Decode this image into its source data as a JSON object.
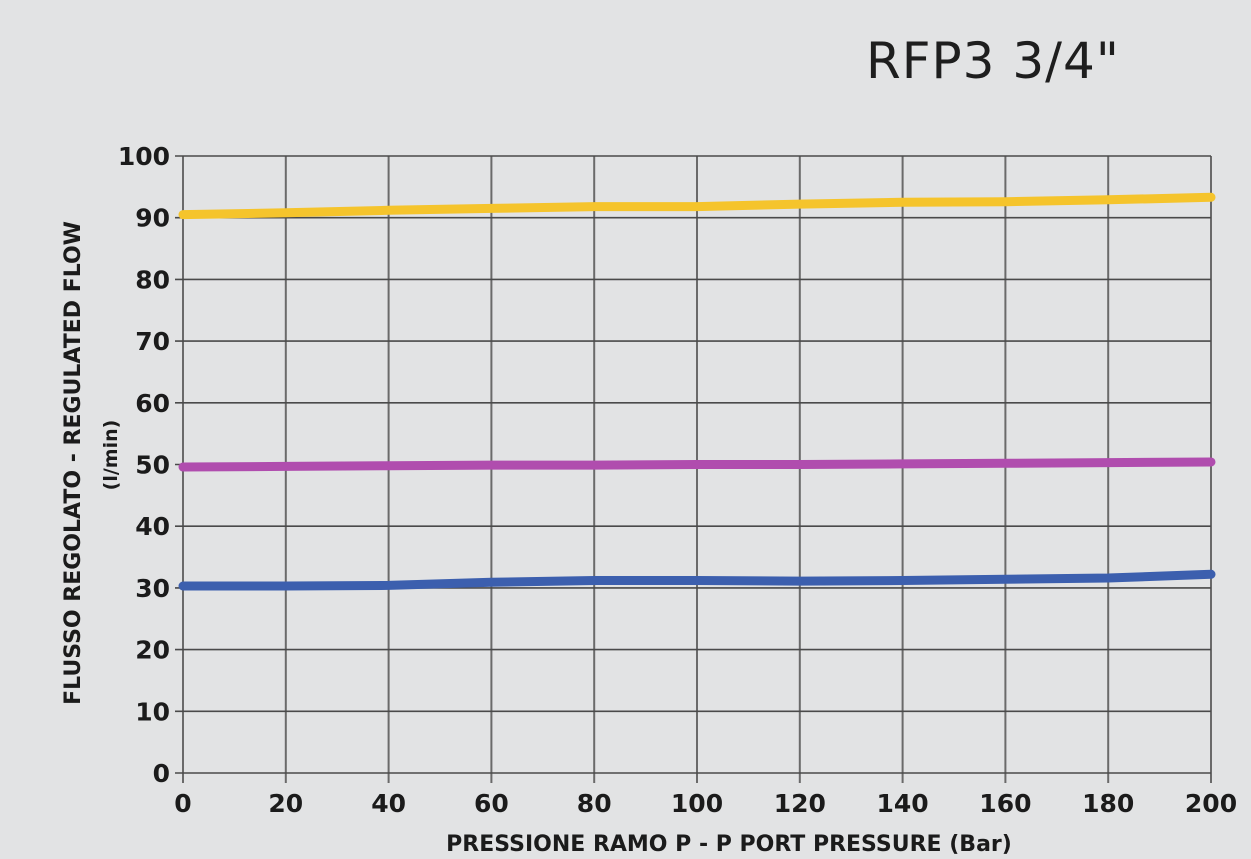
{
  "chart_data": {
    "type": "line",
    "title": "RFP3 3/4\"",
    "xlabel": "PRESSIONE RAMO P - P PORT PRESSURE (Bar)",
    "ylabel": "FLUSSO REGOLATO - REGULATED FLOW",
    "ylabel_unit": "(l/min)",
    "xlim": [
      0,
      200
    ],
    "ylim": [
      0,
      100
    ],
    "x_ticks": [
      0,
      20,
      40,
      60,
      80,
      100,
      120,
      140,
      160,
      180,
      200
    ],
    "y_ticks": [
      0,
      10,
      20,
      30,
      40,
      50,
      60,
      70,
      80,
      90,
      100
    ],
    "grid": true,
    "series": [
      {
        "color": "#f5c42c",
        "x": [
          0,
          20,
          40,
          60,
          80,
          100,
          120,
          140,
          160,
          180,
          200
        ],
        "y": [
          90.5,
          90.8,
          91.2,
          91.5,
          91.8,
          91.8,
          92.2,
          92.5,
          92.6,
          92.9,
          93.3
        ]
      },
      {
        "color": "#b04dae",
        "x": [
          0,
          20,
          40,
          60,
          80,
          100,
          120,
          140,
          160,
          180,
          200
        ],
        "y": [
          49.6,
          49.7,
          49.8,
          49.9,
          49.9,
          50.0,
          50.0,
          50.1,
          50.2,
          50.3,
          50.4
        ]
      },
      {
        "color": "#3c5fae",
        "x": [
          0,
          20,
          40,
          60,
          80,
          100,
          120,
          140,
          160,
          180,
          200
        ],
        "y": [
          30.3,
          30.3,
          30.4,
          30.9,
          31.2,
          31.2,
          31.1,
          31.2,
          31.4,
          31.6,
          32.2
        ]
      }
    ]
  }
}
